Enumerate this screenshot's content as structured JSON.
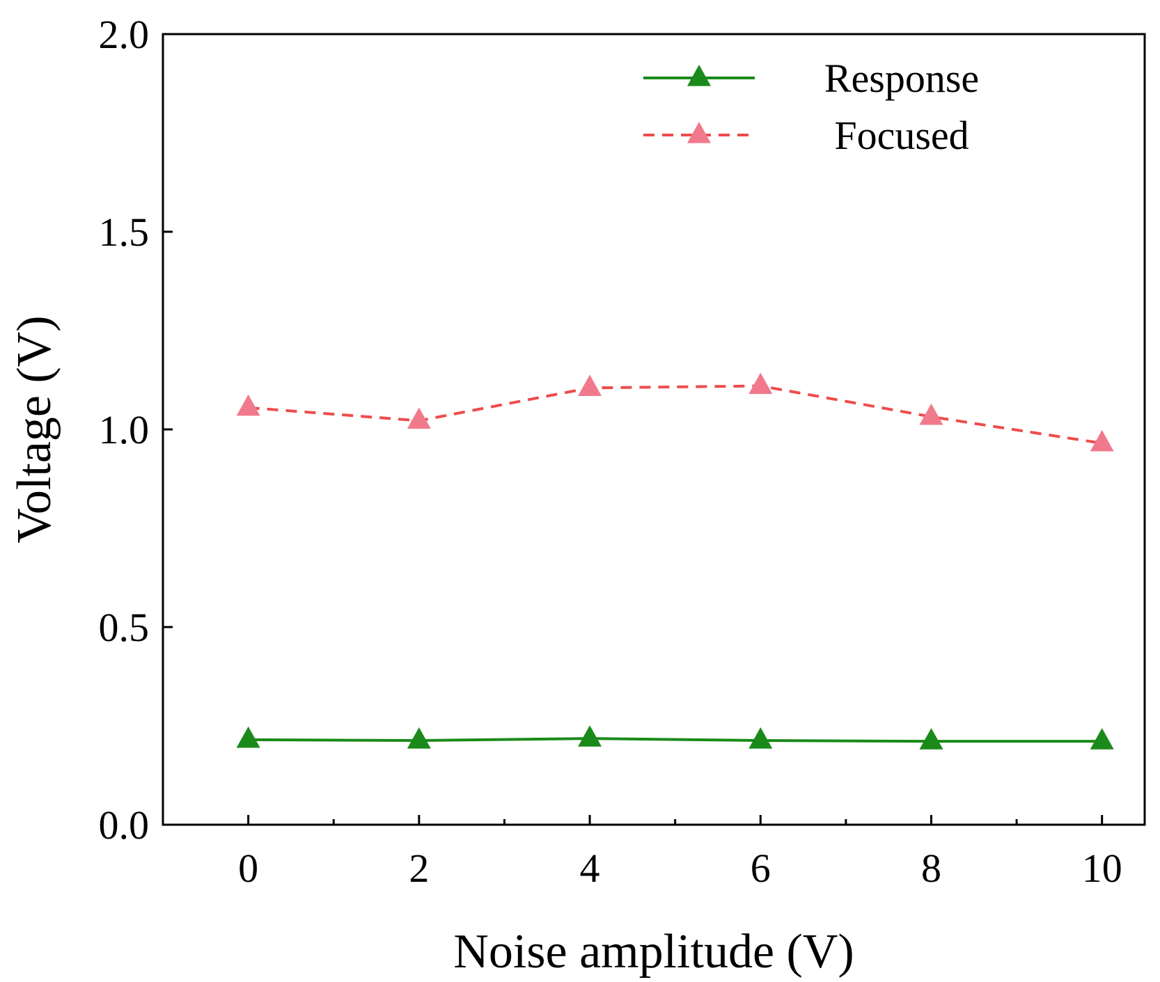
{
  "chart_data": {
    "type": "line",
    "title": "",
    "xlabel": "Noise amplitude (V)",
    "ylabel": "Voltage (V)",
    "x": [
      0,
      2,
      4,
      6,
      8,
      10
    ],
    "xlim": [
      -1,
      10.5
    ],
    "ylim": [
      0.0,
      2.0
    ],
    "xticks": [
      0,
      2,
      4,
      6,
      8,
      10
    ],
    "xtick_labels": [
      "0",
      "2",
      "4",
      "6",
      "8",
      "10"
    ],
    "xminor_ticks": [
      1,
      3,
      5,
      7,
      9
    ],
    "yticks": [
      0.0,
      0.5,
      1.0,
      1.5,
      2.0
    ],
    "ytick_labels": [
      "0.0",
      "0.5",
      "1.0",
      "1.5",
      "2.0"
    ],
    "grid": false,
    "legend_position": "top-right",
    "series": [
      {
        "name": "Response",
        "values": [
          0.215,
          0.213,
          0.218,
          0.213,
          0.211,
          0.211
        ],
        "color": "#1a8a1a",
        "marker_color": "#1a8a1a",
        "line_style": "solid",
        "marker": "triangle"
      },
      {
        "name": "Focused",
        "values": [
          1.055,
          1.022,
          1.105,
          1.11,
          1.032,
          0.965
        ],
        "color": "#ee4c4c",
        "marker_color": "#f07a8c",
        "line_style": "dashed",
        "marker": "triangle"
      }
    ]
  }
}
